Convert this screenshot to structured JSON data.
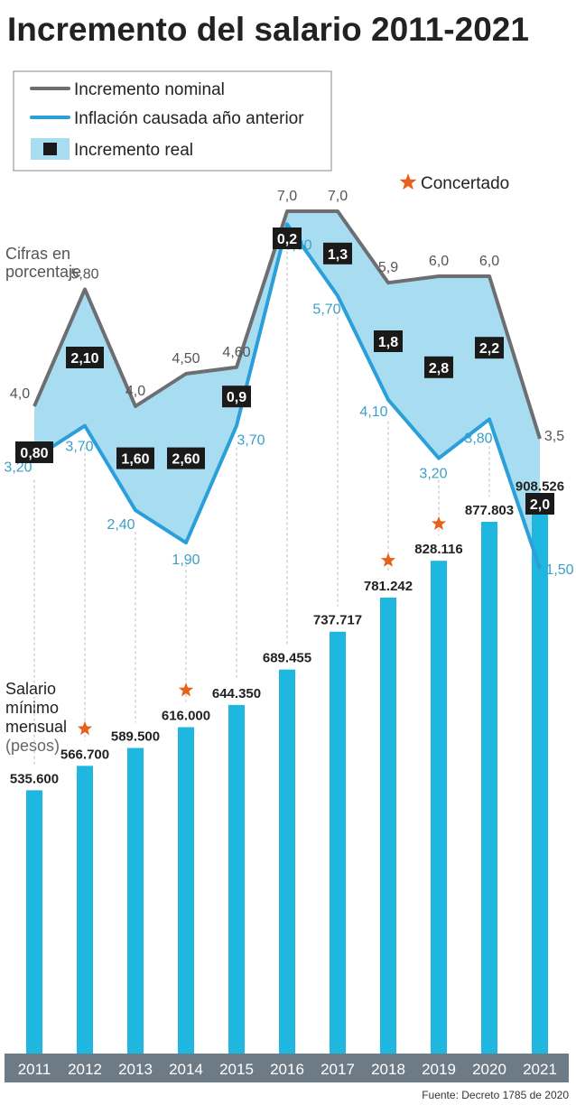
{
  "title": "Incremento del salario 2011-2021",
  "legend": {
    "nominal": "Incremento nominal",
    "inflation": "Inflación causada año anterior",
    "real": "Incremento real",
    "concertado": "Concertado"
  },
  "top_note": [
    "Cifras en",
    "porcentaje"
  ],
  "salary_note": [
    "Salario",
    "mínimo",
    "mensual",
    "(pesos)"
  ],
  "source": "Fuente: Decreto 1785 de 2020",
  "colors": {
    "nominal_line": "#6d6e71",
    "inflation_line": "#2b9fd9",
    "real_fill": "#a8dcf0",
    "bar": "#1fb7e0",
    "year_band": "#6d7b87",
    "star": "#e8611a",
    "label_box": "#1a1a1a"
  },
  "chart_data": [
    {
      "type": "line",
      "x": [
        "2011",
        "2012",
        "2013",
        "2014",
        "2015",
        "2016",
        "2017",
        "2018",
        "2019",
        "2020",
        "2021"
      ],
      "series": [
        {
          "name": "Incremento nominal",
          "values": [
            4.0,
            5.8,
            4.0,
            4.5,
            4.6,
            7.0,
            7.0,
            5.9,
            6.0,
            6.0,
            3.5
          ],
          "labels": [
            "4,0",
            "5,80",
            "4,0",
            "4,50",
            "4,60",
            "7,0",
            "7,0",
            "5,9",
            "6,0",
            "6,0",
            "3,5"
          ]
        },
        {
          "name": "Inflación causada año anterior",
          "values": [
            3.2,
            3.7,
            2.4,
            1.9,
            3.7,
            6.8,
            5.7,
            4.1,
            3.2,
            3.8,
            1.5
          ],
          "labels": [
            "3,20",
            "3,70",
            "2,40",
            "1,90",
            "3,70",
            "6,80",
            "5,70",
            "4,10",
            "3,20",
            "3,80",
            "1,50"
          ]
        },
        {
          "name": "Incremento real",
          "values": [
            0.8,
            2.1,
            1.6,
            2.6,
            0.9,
            0.2,
            1.3,
            1.8,
            2.8,
            2.2,
            2.0
          ],
          "labels": [
            "0,80",
            "2,10",
            "1,60",
            "2,60",
            "0,9",
            "0,2",
            "1,3",
            "1,8",
            "2,8",
            "2,2",
            "2,0"
          ]
        }
      ],
      "ylabel": "Cifras en porcentaje",
      "grid": false,
      "legend_position": "top-left"
    },
    {
      "type": "bar",
      "categories": [
        "2011",
        "2012",
        "2013",
        "2014",
        "2015",
        "2016",
        "2017",
        "2018",
        "2019",
        "2020",
        "2021"
      ],
      "values": [
        535600,
        566700,
        589500,
        616000,
        644350,
        689455,
        737717,
        781242,
        828116,
        877803,
        908526
      ],
      "value_labels": [
        "535.600",
        "566.700",
        "589.500",
        "616.000",
        "644.350",
        "689.455",
        "737.717",
        "781.242",
        "828.116",
        "877.803",
        "908.526"
      ],
      "concertado": [
        false,
        true,
        false,
        true,
        false,
        false,
        false,
        true,
        true,
        false,
        false
      ],
      "ylabel": "Salario mínimo mensual (pesos)"
    }
  ]
}
